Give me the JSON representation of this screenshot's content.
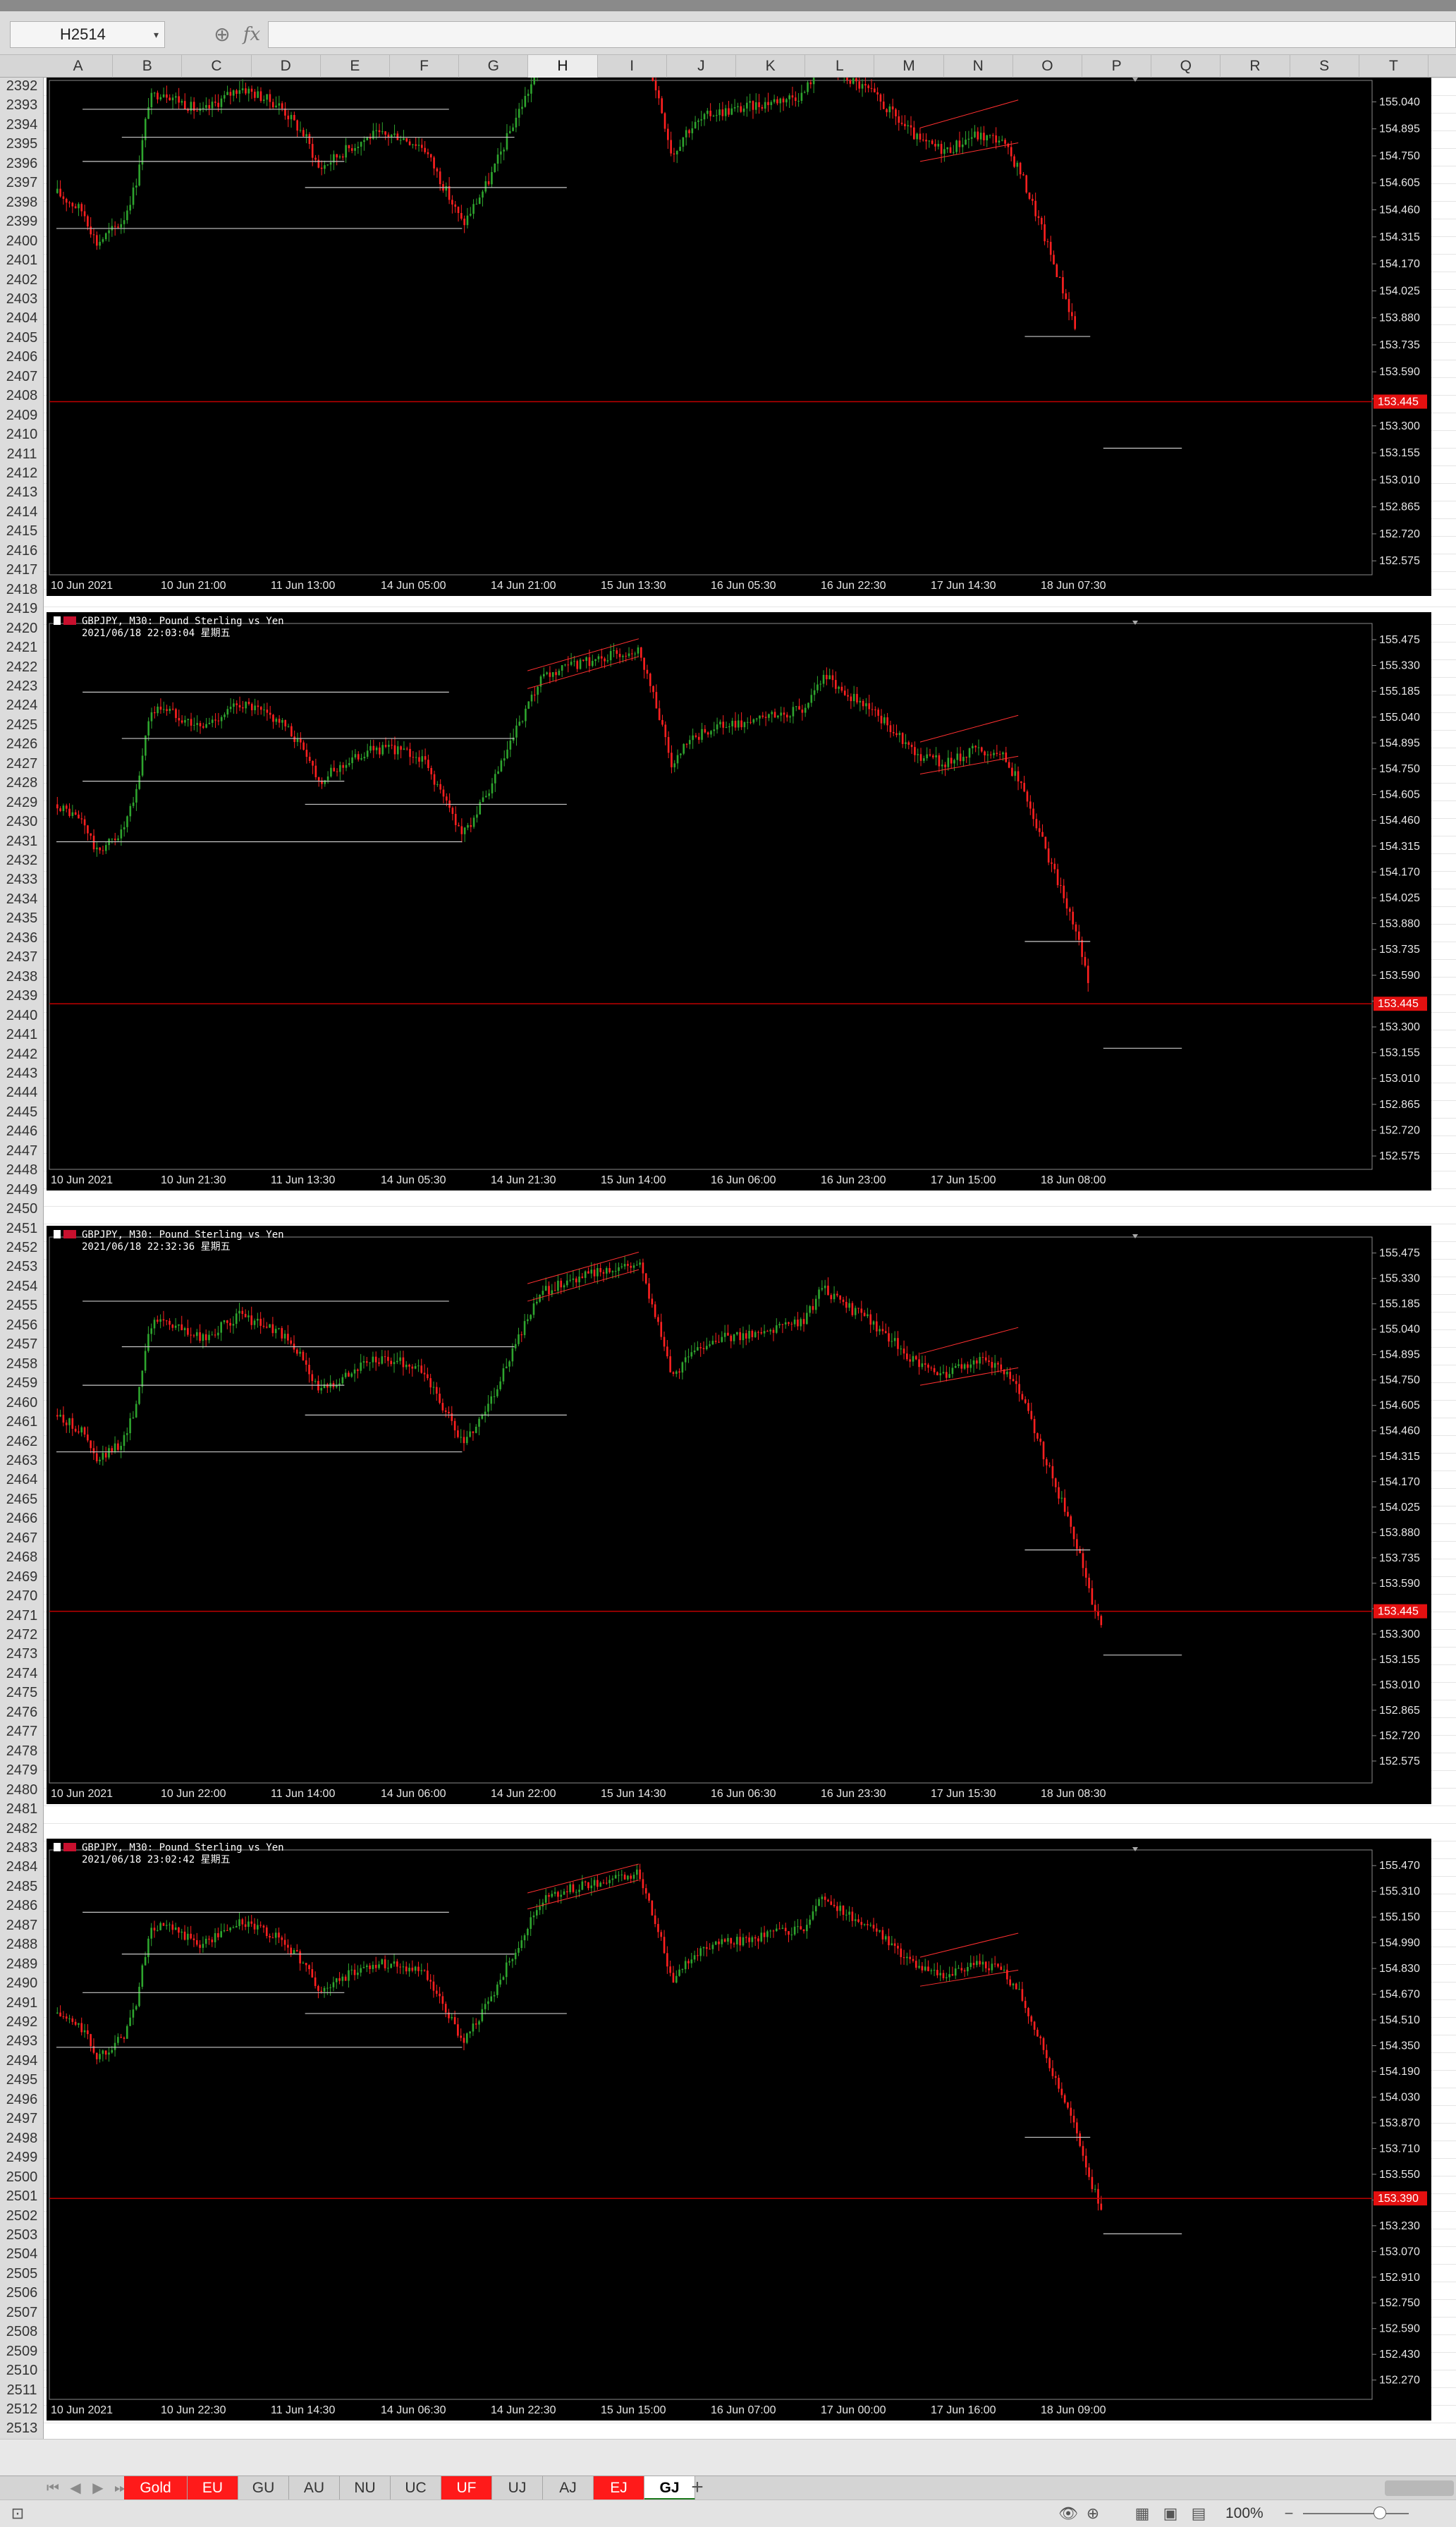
{
  "formula_bar": {
    "name_box": "H2514",
    "formula_value": ""
  },
  "columns": [
    {
      "label": "A",
      "selected": false
    },
    {
      "label": "B",
      "selected": false
    },
    {
      "label": "C",
      "selected": false
    },
    {
      "label": "D",
      "selected": false
    },
    {
      "label": "E",
      "selected": false
    },
    {
      "label": "F",
      "selected": false
    },
    {
      "label": "G",
      "selected": false
    },
    {
      "label": "H",
      "selected": true
    },
    {
      "label": "I",
      "selected": false
    },
    {
      "label": "J",
      "selected": false
    },
    {
      "label": "K",
      "selected": false
    },
    {
      "label": "L",
      "selected": false
    },
    {
      "label": "M",
      "selected": false
    },
    {
      "label": "N",
      "selected": false
    },
    {
      "label": "O",
      "selected": false
    },
    {
      "label": "P",
      "selected": false
    },
    {
      "label": "Q",
      "selected": false
    },
    {
      "label": "R",
      "selected": false
    },
    {
      "label": "S",
      "selected": false
    },
    {
      "label": "T",
      "selected": false
    }
  ],
  "rows": {
    "first": 2392,
    "last": 2513
  },
  "colors": {
    "bull": "#2ea52e",
    "bear": "#ff2020",
    "level_line": "#c8c8c8",
    "current_price_line": "#c00000",
    "tab_red": "#ff1a1a"
  },
  "chart_data": [
    {
      "type": "candlestick",
      "title": "",
      "subtitle": "",
      "ylim": [
        152.5,
        155.14
      ],
      "y_ticks": [
        "155.040",
        "154.895",
        "154.750",
        "154.605",
        "154.460",
        "154.315",
        "154.170",
        "154.025",
        "153.880",
        "153.735",
        "153.590",
        "153.445",
        "153.300",
        "153.155",
        "153.010",
        "152.865",
        "152.720",
        "152.575"
      ],
      "x_ticks": [
        "10 Jun 2021",
        "10 Jun 21:00",
        "11 Jun 13:00",
        "14 Jun 05:00",
        "14 Jun 21:00",
        "15 Jun 13:30",
        "16 Jun 05:30",
        "16 Jun 22:30",
        "17 Jun 14:30",
        "18 Jun 07:30"
      ],
      "current_price": 153.43,
      "current_price_label": "153.445",
      "key_levels": [
        155.0,
        154.85,
        154.72,
        154.58,
        154.36,
        153.78,
        153.18
      ]
    },
    {
      "type": "candlestick",
      "title": "GBPJPY, M30:  Pound Sterling vs Yen",
      "subtitle": "2021/06/18 22:03:04 星期五",
      "ylim": [
        152.5,
        155.55
      ],
      "y_ticks": [
        "155.475",
        "155.330",
        "155.185",
        "155.040",
        "154.895",
        "154.750",
        "154.605",
        "154.460",
        "154.315",
        "154.170",
        "154.025",
        "153.880",
        "153.735",
        "153.590",
        "153.445",
        "153.300",
        "153.155",
        "153.010",
        "152.865",
        "152.720",
        "152.575"
      ],
      "x_ticks": [
        "10 Jun 2021",
        "10 Jun 21:30",
        "11 Jun 13:30",
        "14 Jun 05:30",
        "14 Jun 21:30",
        "15 Jun 14:00",
        "16 Jun 06:00",
        "16 Jun 23:00",
        "17 Jun 15:00",
        "18 Jun 08:00"
      ],
      "current_price": 153.43,
      "current_price_label": "153.445",
      "key_levels": [
        155.18,
        154.92,
        154.68,
        154.55,
        154.34,
        153.78,
        153.18
      ]
    },
    {
      "type": "candlestick",
      "title": "GBPJPY, M30:  Pound Sterling vs Yen",
      "subtitle": "2021/06/18 22:32:36 星期五",
      "ylim": [
        152.45,
        155.55
      ],
      "y_ticks": [
        "155.475",
        "155.330",
        "155.185",
        "155.040",
        "154.895",
        "154.750",
        "154.605",
        "154.460",
        "154.315",
        "154.170",
        "154.025",
        "153.880",
        "153.735",
        "153.590",
        "153.445",
        "153.300",
        "153.155",
        "153.010",
        "152.865",
        "152.720",
        "152.575"
      ],
      "x_ticks": [
        "10 Jun 2021",
        "10 Jun 22:00",
        "11 Jun 14:00",
        "14 Jun 06:00",
        "14 Jun 22:00",
        "15 Jun 14:30",
        "16 Jun 06:30",
        "16 Jun 23:30",
        "17 Jun 15:30",
        "18 Jun 08:30"
      ],
      "current_price": 153.43,
      "current_price_label": "153.445",
      "key_levels": [
        155.2,
        154.94,
        154.72,
        154.55,
        154.34,
        153.78,
        153.18
      ]
    },
    {
      "type": "candlestick",
      "title": "GBPJPY, M30:  Pound Sterling vs Yen",
      "subtitle": "2021/06/18 23:02:42 星期五",
      "ylim": [
        152.15,
        155.55
      ],
      "y_ticks": [
        "155.470",
        "155.310",
        "155.150",
        "154.990",
        "154.830",
        "154.670",
        "154.510",
        "154.350",
        "154.190",
        "154.030",
        "153.870",
        "153.710",
        "153.550",
        "153.390",
        "153.230",
        "153.070",
        "152.910",
        "152.750",
        "152.590",
        "152.430",
        "152.270"
      ],
      "x_ticks": [
        "10 Jun 2021",
        "10 Jun 22:30",
        "11 Jun 14:30",
        "14 Jun 06:30",
        "14 Jun 22:30",
        "15 Jun 15:00",
        "16 Jun 07:00",
        "17 Jun 00:00",
        "17 Jun 16:00",
        "18 Jun 09:00"
      ],
      "current_price": 153.4,
      "current_price_label": "153.390",
      "key_levels": [
        155.18,
        154.92,
        154.68,
        154.55,
        154.34,
        153.78,
        153.18
      ]
    }
  ],
  "sheet_tabs": [
    {
      "label": "Gold",
      "style": "red"
    },
    {
      "label": "EU",
      "style": "red"
    },
    {
      "label": "GU",
      "style": "normal"
    },
    {
      "label": "AU",
      "style": "normal"
    },
    {
      "label": "NU",
      "style": "normal"
    },
    {
      "label": "UC",
      "style": "normal"
    },
    {
      "label": "UF",
      "style": "red"
    },
    {
      "label": "UJ",
      "style": "normal"
    },
    {
      "label": "AJ",
      "style": "normal"
    },
    {
      "label": "EJ",
      "style": "red"
    },
    {
      "label": "GJ",
      "style": "active"
    }
  ],
  "status_bar": {
    "zoom": "100%"
  },
  "icons": {
    "name_box_dropdown": "chevron-down-icon",
    "zoom": "zoom-icon",
    "fx": "fx-icon",
    "add_sheet": "plus-icon",
    "record_macro": "macro-icon",
    "eye_protection": "eye-icon",
    "view_normal": "normal-view-icon",
    "view_page_layout": "page-layout-icon",
    "view_page_break": "page-break-icon"
  }
}
